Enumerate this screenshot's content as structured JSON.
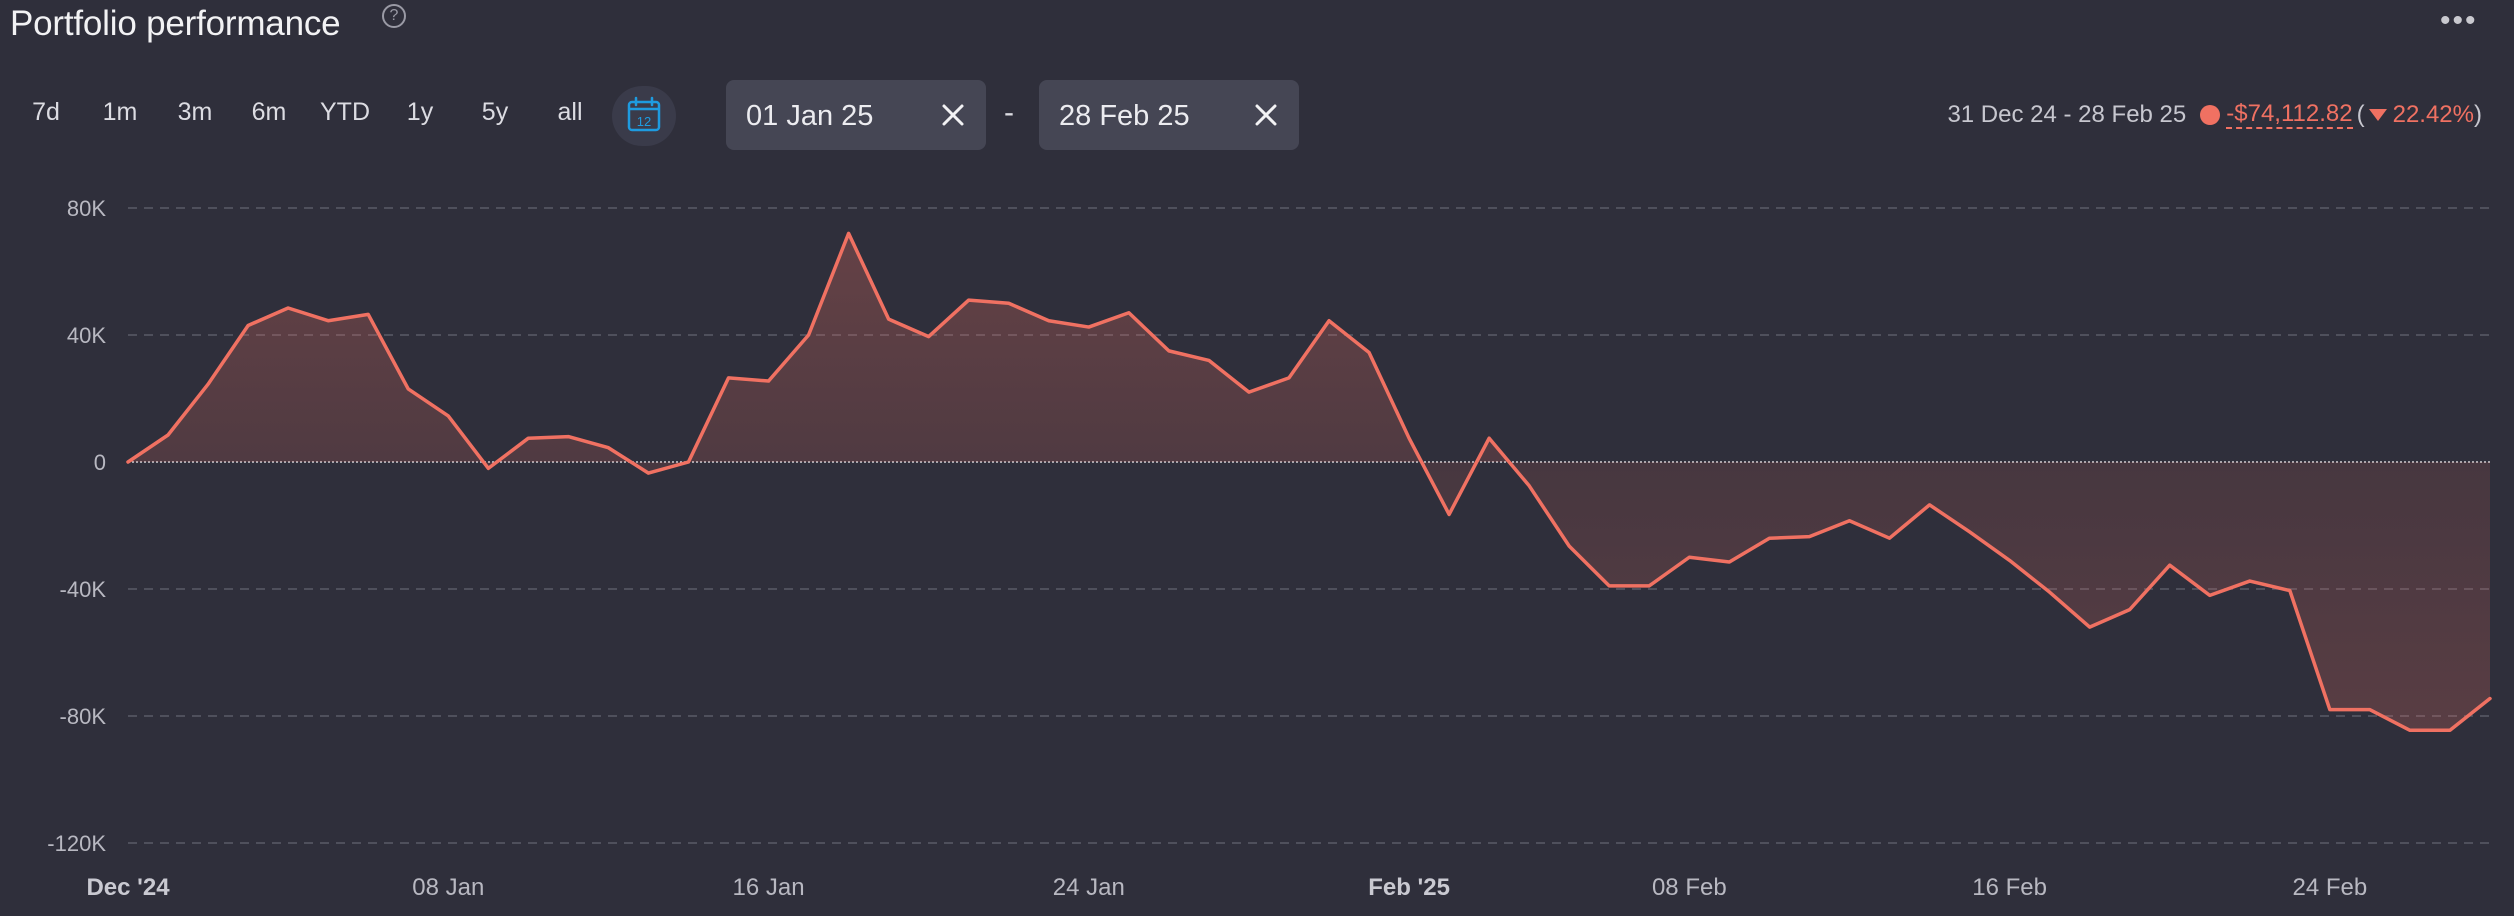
{
  "header": {
    "title": "Portfolio performance",
    "help_glyph": "?",
    "more_glyph": "•••"
  },
  "toolbar": {
    "ranges": [
      {
        "label": "7d"
      },
      {
        "label": "1m"
      },
      {
        "label": "3m"
      },
      {
        "label": "6m"
      },
      {
        "label": "YTD"
      },
      {
        "label": "1y"
      },
      {
        "label": "5y"
      },
      {
        "label": "all"
      }
    ],
    "calendar_day": "12",
    "start_date": "01 Jan 25",
    "end_date": "28 Feb 25",
    "separator": "-"
  },
  "summary": {
    "period": "31 Dec 24 - 28 Feb 25",
    "change": "-$74,112.82",
    "open_paren": "(",
    "percent": "22.42%",
    "close_paren": ")"
  },
  "colors": {
    "background": "#2f2f3b",
    "line": "#f07162",
    "accent_calendar": "#1e9be0",
    "grid": "#5a5b68"
  },
  "chart_data": {
    "type": "area",
    "ylim": [
      -120000,
      80000
    ],
    "yticks": [
      80000,
      40000,
      0,
      -40000,
      -80000,
      -120000
    ],
    "ytick_labels": [
      "80K",
      "40K",
      "0",
      "-40K",
      "-80K",
      "-120K"
    ],
    "xticks": [
      {
        "date": "2024-12-31",
        "label": "Dec '24",
        "major": true
      },
      {
        "date": "2025-01-08",
        "label": "08 Jan",
        "major": false
      },
      {
        "date": "2025-01-16",
        "label": "16 Jan",
        "major": false
      },
      {
        "date": "2025-01-24",
        "label": "24 Jan",
        "major": false
      },
      {
        "date": "2025-02-01",
        "label": "Feb '25",
        "major": true
      },
      {
        "date": "2025-02-08",
        "label": "08 Feb",
        "major": false
      },
      {
        "date": "2025-02-16",
        "label": "16 Feb",
        "major": false
      },
      {
        "date": "2025-02-24",
        "label": "24 Feb",
        "major": false
      }
    ],
    "grid": true,
    "x": [
      "2024-12-31",
      "2025-01-01",
      "2025-01-02",
      "2025-01-03",
      "2025-01-04",
      "2025-01-05",
      "2025-01-06",
      "2025-01-07",
      "2025-01-08",
      "2025-01-09",
      "2025-01-10",
      "2025-01-11",
      "2025-01-12",
      "2025-01-13",
      "2025-01-14",
      "2025-01-15",
      "2025-01-16",
      "2025-01-17",
      "2025-01-18",
      "2025-01-19",
      "2025-01-20",
      "2025-01-21",
      "2025-01-22",
      "2025-01-23",
      "2025-01-24",
      "2025-01-25",
      "2025-01-26",
      "2025-01-27",
      "2025-01-28",
      "2025-01-29",
      "2025-01-30",
      "2025-01-31",
      "2025-02-01",
      "2025-02-02",
      "2025-02-03",
      "2025-02-04",
      "2025-02-05",
      "2025-02-06",
      "2025-02-07",
      "2025-02-08",
      "2025-02-09",
      "2025-02-10",
      "2025-02-11",
      "2025-02-12",
      "2025-02-13",
      "2025-02-14",
      "2025-02-15",
      "2025-02-16",
      "2025-02-17",
      "2025-02-18",
      "2025-02-19",
      "2025-02-20",
      "2025-02-21",
      "2025-02-22",
      "2025-02-23",
      "2025-02-24",
      "2025-02-25",
      "2025-02-26",
      "2025-02-27",
      "2025-02-28"
    ],
    "series": [
      {
        "values": [
          0,
          8500,
          24500,
          43000,
          48500,
          44500,
          46500,
          23000,
          14500,
          -2000,
          7500,
          8000,
          4500,
          -3500,
          0,
          26500,
          25500,
          40000,
          72000,
          45000,
          39500,
          51000,
          50000,
          44500,
          42500,
          47000,
          35000,
          32000,
          22000,
          26500,
          44500,
          34500,
          7500,
          -16500,
          7500,
          -7500,
          -26500,
          -39000,
          -39000,
          -30000,
          -31500,
          -24000,
          -23500,
          -18500,
          -24000,
          -13500,
          -22000,
          -31000,
          -41000,
          -52000,
          -46500,
          -32500,
          -42000,
          -37500,
          -40500,
          -78000,
          -78000,
          -84500,
          -84500,
          -74500
        ]
      }
    ]
  }
}
